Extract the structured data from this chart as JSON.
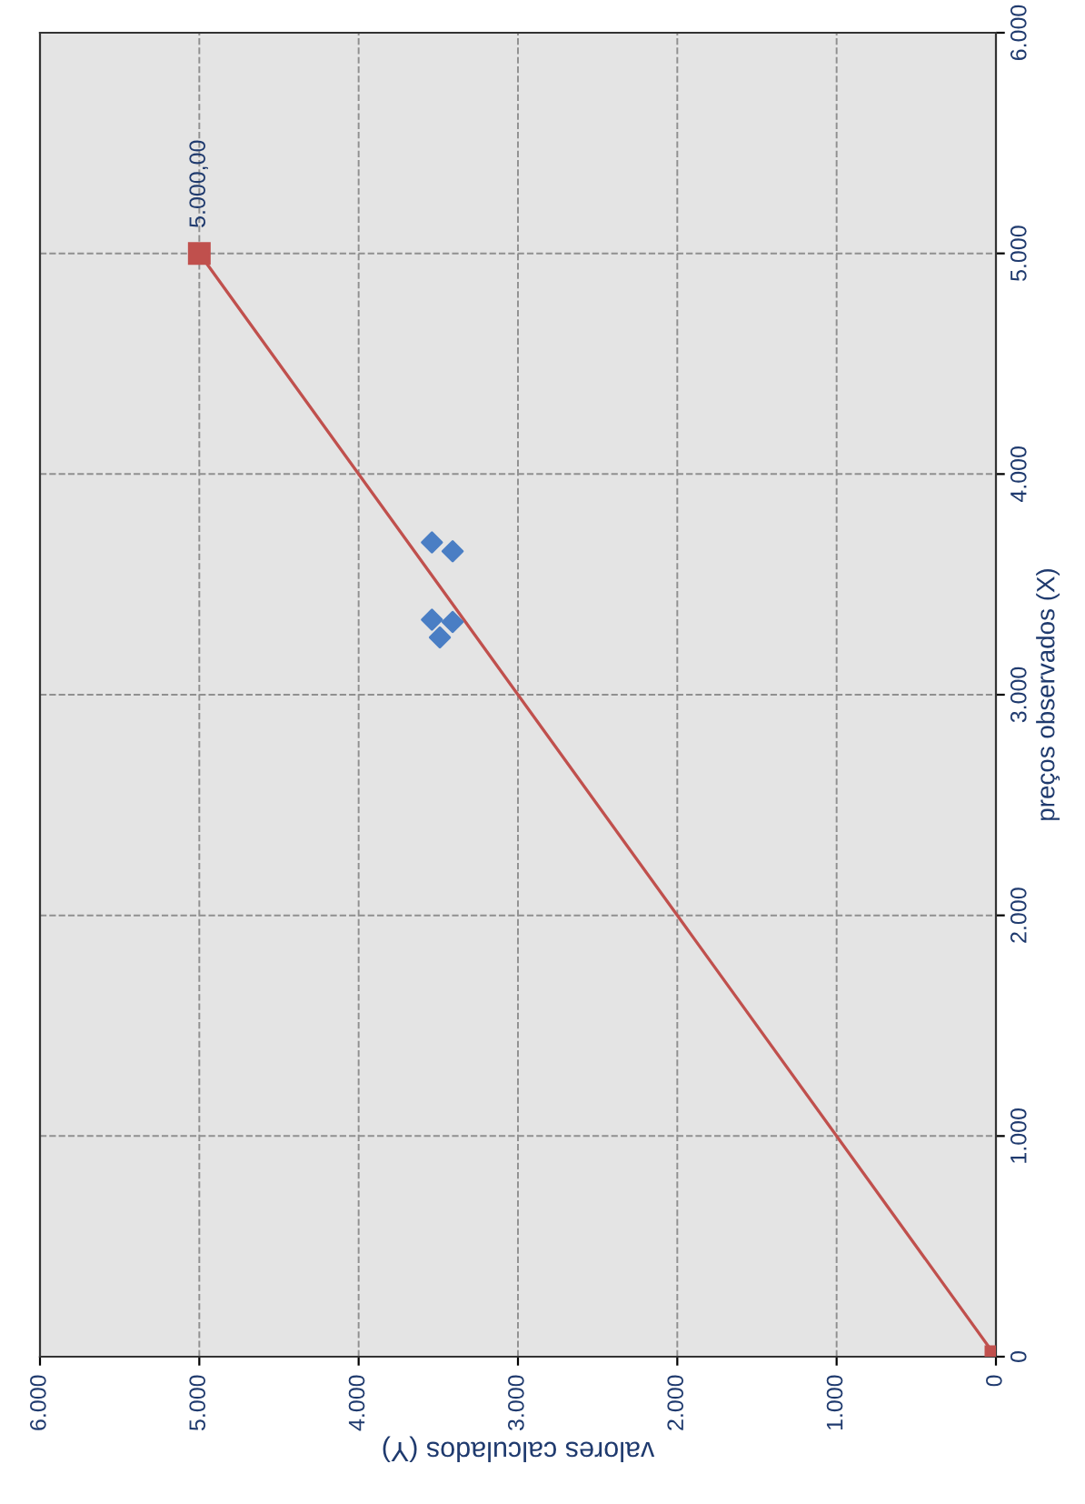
{
  "chart_data": {
    "type": "scatter",
    "xlabel": "valores calculados (Y)",
    "ylabel": "preços observados (X)",
    "series": [
      {
        "color": "#4a7ec4",
        "marker": "diamond",
        "x": [
          3540,
          3410,
          3540,
          3460,
          3410,
          3490
        ],
        "values": [
          3690,
          3650,
          3340,
          null,
          3330,
          3260
        ]
      },
      {
        "type": "line",
        "color": "#c0504d",
        "marker": "square",
        "line_style": "solid",
        "x": [
          0,
          5000
        ],
        "values": [
          0,
          5000
        ],
        "value_labels": [
          null,
          "5.000,00"
        ]
      }
    ],
    "xlim": [
      6000,
      0
    ],
    "ylim": [
      0,
      6000
    ],
    "xticks": [
      {
        "value": 6000,
        "label": "6.000"
      },
      {
        "value": 5000,
        "label": "5.000"
      },
      {
        "value": 4000,
        "label": "4.000"
      },
      {
        "value": 3000,
        "label": "3.000"
      },
      {
        "value": 2000,
        "label": "2.000"
      },
      {
        "value": 1000,
        "label": "1.000"
      },
      0
    ],
    "yticks": [
      0,
      {
        "value": 1000,
        "label": "1.000"
      },
      {
        "value": 2000,
        "label": "2.000"
      },
      {
        "value": 3000,
        "label": "3.000"
      },
      {
        "value": 4000,
        "label": "4.000"
      },
      {
        "value": 5000,
        "label": "5.000"
      },
      {
        "value": 6000,
        "label": "6.000"
      }
    ],
    "grid": true
  }
}
